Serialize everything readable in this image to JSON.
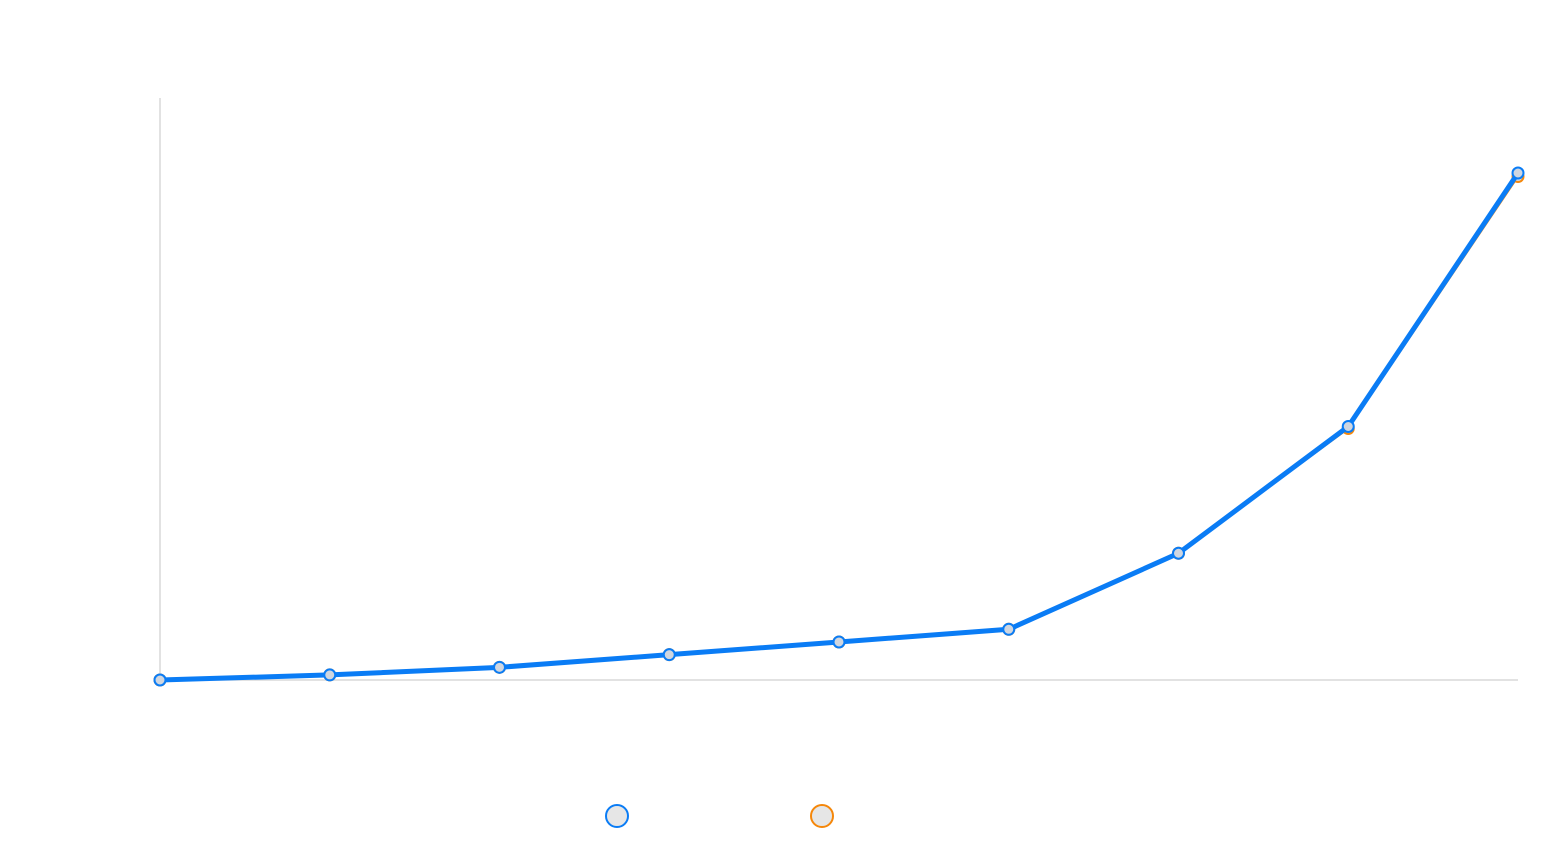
{
  "chart_data": {
    "type": "line",
    "title": "",
    "xlabel": "",
    "ylabel": "",
    "categories": [
      "",
      "",
      "",
      "",
      "",
      "",
      "",
      "",
      ""
    ],
    "x_count": 9,
    "ylim": [
      0,
      100
    ],
    "grid": false,
    "legend": "bottom",
    "series": [
      {
        "color": "#0a7cf5",
        "values": [
          0,
          1,
          2.5,
          5,
          7.5,
          10,
          25,
          50,
          100
        ]
      },
      {
        "color": "#f5870a",
        "values": [
          0,
          1,
          2.5,
          5,
          7.5,
          10,
          25,
          49.6,
          99.3
        ]
      }
    ]
  }
}
